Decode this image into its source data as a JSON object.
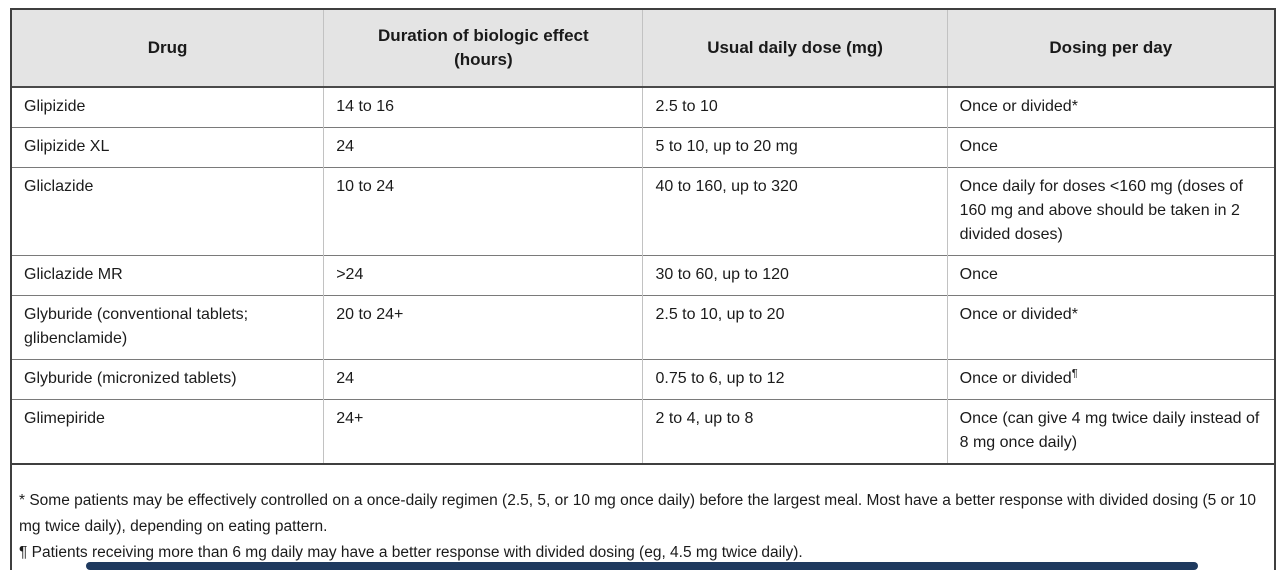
{
  "table": {
    "columns": [
      "Drug",
      "Duration of biologic effect (hours)",
      "Usual daily dose (mg)",
      "Dosing per day"
    ],
    "rows": [
      {
        "drug": "Glipizide",
        "duration": "14 to 16",
        "dose": "2.5 to 10",
        "dosing": "Once or divided*",
        "dosing_sup": ""
      },
      {
        "drug": "Glipizide XL",
        "duration": "24",
        "dose": "5 to 10, up to 20 mg",
        "dosing": "Once",
        "dosing_sup": ""
      },
      {
        "drug": "Gliclazide",
        "duration": "10 to 24",
        "dose": "40 to 160, up to 320",
        "dosing": "Once daily for doses <160 mg (doses of 160 mg and above should be taken in 2 divided doses)",
        "dosing_sup": ""
      },
      {
        "drug": "Gliclazide MR",
        "duration": ">24",
        "dose": "30 to 60, up to 120",
        "dosing": "Once",
        "dosing_sup": ""
      },
      {
        "drug": "Glyburide (conventional tablets; glibenclamide)",
        "duration": "20 to 24+",
        "dose": "2.5 to 10, up to 20",
        "dosing": "Once or divided*",
        "dosing_sup": ""
      },
      {
        "drug": "Glyburide (micronized tablets)",
        "duration": "24",
        "dose": "0.75 to 6, up to 12",
        "dosing": "Once or divided",
        "dosing_sup": "¶"
      },
      {
        "drug": "Glimepiride",
        "duration": "24+",
        "dose": "2 to 4, up to 8",
        "dosing": "Once (can give 4 mg twice daily instead of 8 mg once daily)",
        "dosing_sup": ""
      }
    ]
  },
  "footnotes": [
    "* Some patients may be effectively controlled on a once-daily regimen (2.5, 5, or 10 mg once daily) before the largest meal. Most have a better response with divided dosing (5 or 10 mg twice daily), depending on eating pattern.",
    "¶ Patients receiving more than 6 mg daily may have a better response with divided dosing (eg, 4.5 mg twice daily)."
  ],
  "colors": {
    "header_background": "#e4e4e4",
    "outer_border": "#3f3f3f",
    "row_line": "#7a7a7a",
    "column_line": "#c2c2c2",
    "text": "#1b1b1b",
    "bottom_bar": "#1f3a5f"
  }
}
